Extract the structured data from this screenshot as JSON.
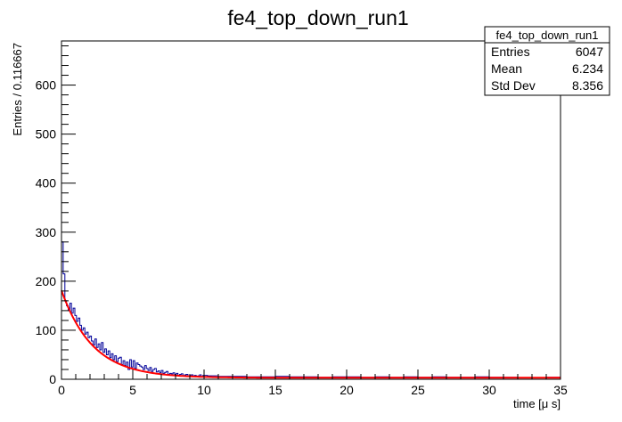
{
  "chart_data": {
    "type": "histogram",
    "title": "fe4_top_down_run1",
    "xlabel": "time [μ s]",
    "ylabel": "Entries / 0.116667",
    "xlim": [
      0,
      35
    ],
    "ylim": [
      0,
      690
    ],
    "bin_width": 0.116667,
    "x_ticks": [
      0,
      5,
      10,
      15,
      20,
      25,
      30,
      35
    ],
    "y_ticks": [
      0,
      100,
      200,
      300,
      400,
      500,
      600
    ],
    "grid": false,
    "histogram": {
      "name": "fe4_top_down_run1",
      "line_color": "#000099",
      "x": [
        0.06,
        0.18,
        0.29,
        0.41,
        0.53,
        0.64,
        0.76,
        0.88,
        0.99,
        1.11,
        1.23,
        1.34,
        1.46,
        1.58,
        1.69,
        1.81,
        1.93,
        2.04,
        2.16,
        2.28,
        2.39,
        2.51,
        2.63,
        2.74,
        2.86,
        2.98,
        3.09,
        3.21,
        3.33,
        3.44,
        3.56,
        3.68,
        3.79,
        3.91,
        4.03,
        4.14,
        4.26,
        4.38,
        4.49,
        4.61,
        4.73,
        4.84,
        4.96,
        5.08,
        5.19,
        5.31,
        5.43,
        5.54,
        5.66,
        5.78,
        5.89,
        6.01,
        6.13,
        6.24,
        6.36,
        6.48,
        6.59,
        6.71,
        6.83,
        6.94,
        7.06,
        7.18,
        7.29,
        7.41,
        7.53,
        7.64,
        7.76,
        7.88,
        7.99,
        8.11,
        8.23,
        8.34,
        8.46,
        8.58,
        8.69,
        8.81,
        8.93,
        9.04,
        9.16,
        9.28,
        9.39,
        9.51,
        9.63,
        9.74,
        9.86,
        9.98,
        10.5,
        11.5,
        12.5,
        13.5,
        14.5,
        15.5,
        16.5,
        17.5,
        18.5,
        19.5,
        20.5,
        21.5,
        22.5,
        23.5,
        24.5,
        25.5,
        26.5,
        27.5,
        28.5,
        29.5,
        30.5,
        31.5,
        32.5,
        33.5,
        34.5
      ],
      "values": [
        280,
        215,
        160,
        150,
        140,
        155,
        135,
        145,
        130,
        118,
        125,
        110,
        100,
        105,
        92,
        96,
        85,
        88,
        78,
        70,
        82,
        65,
        72,
        60,
        75,
        55,
        62,
        50,
        58,
        44,
        52,
        40,
        48,
        36,
        43,
        45,
        30,
        38,
        28,
        35,
        20,
        40,
        25,
        38,
        22,
        33,
        30,
        27,
        25,
        20,
        28,
        22,
        18,
        24,
        16,
        20,
        22,
        15,
        17,
        13,
        18,
        12,
        14,
        16,
        10,
        12,
        11,
        13,
        9,
        12,
        8,
        10,
        11,
        7,
        9,
        10,
        6,
        8,
        9,
        7,
        8,
        6,
        7,
        9,
        5,
        8,
        7,
        6,
        6,
        5,
        5,
        6,
        5,
        5,
        4,
        5,
        5,
        4,
        5,
        4,
        5,
        4,
        5,
        4,
        4,
        5,
        4,
        4,
        3,
        3,
        4
      ]
    },
    "fit": {
      "line_color": "#ff0000",
      "function": "exponential",
      "amplitude": 178,
      "decay_constant_us": 2.2,
      "baseline": 3
    },
    "stats_box": {
      "title": "fe4_top_down_run1",
      "rows": [
        {
          "label": "Entries",
          "value": "6047"
        },
        {
          "label": "Mean",
          "value": "6.234"
        },
        {
          "label": "Std Dev",
          "value": "8.356"
        }
      ]
    }
  }
}
